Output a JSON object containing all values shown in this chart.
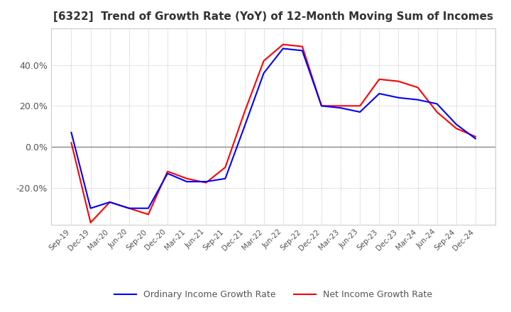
{
  "title": "[6322]  Trend of Growth Rate (YoY) of 12-Month Moving Sum of Incomes",
  "title_fontsize": 11,
  "ylim": [
    -0.38,
    0.58
  ],
  "yticks": [
    -0.2,
    0.0,
    0.2,
    0.4
  ],
  "ytick_labels": [
    "-20.0%",
    "0.0%",
    "20.0%",
    "40.0%"
  ],
  "background_color": "#ffffff",
  "grid_color": "#aaaaaa",
  "legend_labels": [
    "Ordinary Income Growth Rate",
    "Net Income Growth Rate"
  ],
  "legend_colors": [
    "#0000ff",
    "#ff0000"
  ],
  "x_labels": [
    "Sep-19",
    "Dec-19",
    "Mar-20",
    "Jun-20",
    "Sep-20",
    "Dec-20",
    "Mar-21",
    "Jun-21",
    "Sep-21",
    "Dec-21",
    "Mar-22",
    "Jun-22",
    "Sep-22",
    "Dec-22",
    "Mar-23",
    "Jun-23",
    "Sep-23",
    "Dec-23",
    "Mar-24",
    "Jun-24",
    "Sep-24",
    "Dec-24"
  ],
  "ordinary_income_growth": [
    0.07,
    -0.3,
    -0.27,
    -0.3,
    -0.3,
    -0.13,
    -0.17,
    -0.17,
    -0.155,
    0.1,
    0.36,
    0.48,
    0.47,
    0.2,
    0.19,
    0.17,
    0.26,
    0.24,
    0.23,
    0.21,
    0.11,
    0.04
  ],
  "net_income_growth": [
    0.02,
    -0.37,
    -0.27,
    -0.3,
    -0.33,
    -0.12,
    -0.155,
    -0.175,
    -0.1,
    0.17,
    0.42,
    0.5,
    0.49,
    0.2,
    0.2,
    0.2,
    0.33,
    0.32,
    0.29,
    0.17,
    0.09,
    0.05
  ]
}
